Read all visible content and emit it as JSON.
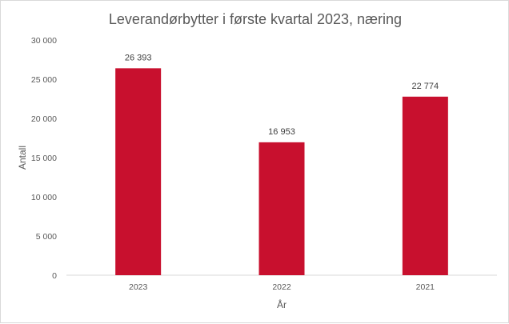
{
  "chart_data": {
    "type": "bar",
    "title": "Leverandørbytter i første kvartal 2023, næring",
    "xlabel": "År",
    "ylabel": "Antall",
    "categories": [
      "2023",
      "2022",
      "2021"
    ],
    "values": [
      26393,
      16953,
      22774
    ],
    "data_labels": [
      "26 393",
      "16 953",
      "22 774"
    ],
    "ylim": [
      0,
      30000
    ],
    "yticks": [
      0,
      5000,
      10000,
      15000,
      20000,
      25000,
      30000
    ],
    "ytick_labels": [
      "0",
      "5 000",
      "10 000",
      "15 000",
      "20 000",
      "25 000",
      "30 000"
    ],
    "grid": false,
    "legend": "none",
    "bar_color": "#c8102e"
  }
}
